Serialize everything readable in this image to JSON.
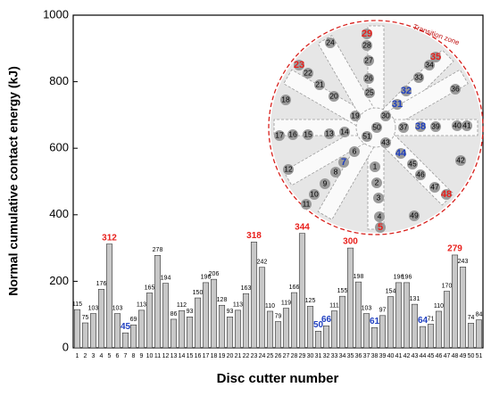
{
  "chart_data": {
    "type": "bar",
    "ylabel": "Normal cumulative contact energy (kJ)",
    "xlabel": "Disc cutter number",
    "categories": [
      "1",
      "2",
      "3",
      "4",
      "5",
      "6",
      "7",
      "8",
      "9",
      "10",
      "11",
      "12",
      "13",
      "14",
      "15",
      "16",
      "17",
      "18",
      "19",
      "20",
      "21",
      "22",
      "23",
      "24",
      "25",
      "26",
      "27",
      "28",
      "29",
      "30",
      "31",
      "32",
      "33",
      "34",
      "35",
      "36",
      "37",
      "38",
      "39",
      "40",
      "41",
      "42",
      "43",
      "44",
      "45",
      "46",
      "47",
      "48",
      "49",
      "50",
      "51"
    ],
    "values": [
      115,
      75,
      103,
      176,
      312,
      103,
      45,
      69,
      113,
      165,
      278,
      194,
      86,
      112,
      93,
      150,
      196,
      206,
      128,
      93,
      113,
      163,
      318,
      242,
      110,
      79,
      119,
      166,
      344,
      125,
      50,
      66,
      111,
      155,
      300,
      198,
      103,
      61,
      97,
      154,
      196,
      196,
      131,
      64,
      71,
      110,
      170,
      279,
      243,
      74,
      84
    ],
    "color": "#c8c8c8",
    "label_colors": [
      "#000",
      "#000",
      "#000",
      "#000",
      "#e8201c",
      "#000",
      "#1f3fc0",
      "#000",
      "#000",
      "#000",
      "#000",
      "#000",
      "#000",
      "#000",
      "#000",
      "#000",
      "#000",
      "#000",
      "#000",
      "#000",
      "#000",
      "#000",
      "#e8201c",
      "#000",
      "#000",
      "#000",
      "#000",
      "#000",
      "#e8201c",
      "#000",
      "#1f3fc0",
      "#1f3fc0",
      "#000",
      "#000",
      "#e8201c",
      "#000",
      "#000",
      "#1f3fc0",
      "#000",
      "#000",
      "#000",
      "#000",
      "#000",
      "#1f3fc0",
      "#000",
      "#000",
      "#000",
      "#e8201c",
      "#000",
      "#000",
      "#000"
    ],
    "ylim": [
      0,
      1000
    ],
    "yticks": [
      0,
      200,
      400,
      600,
      800,
      1000
    ],
    "inset_label": "Transition zone"
  }
}
